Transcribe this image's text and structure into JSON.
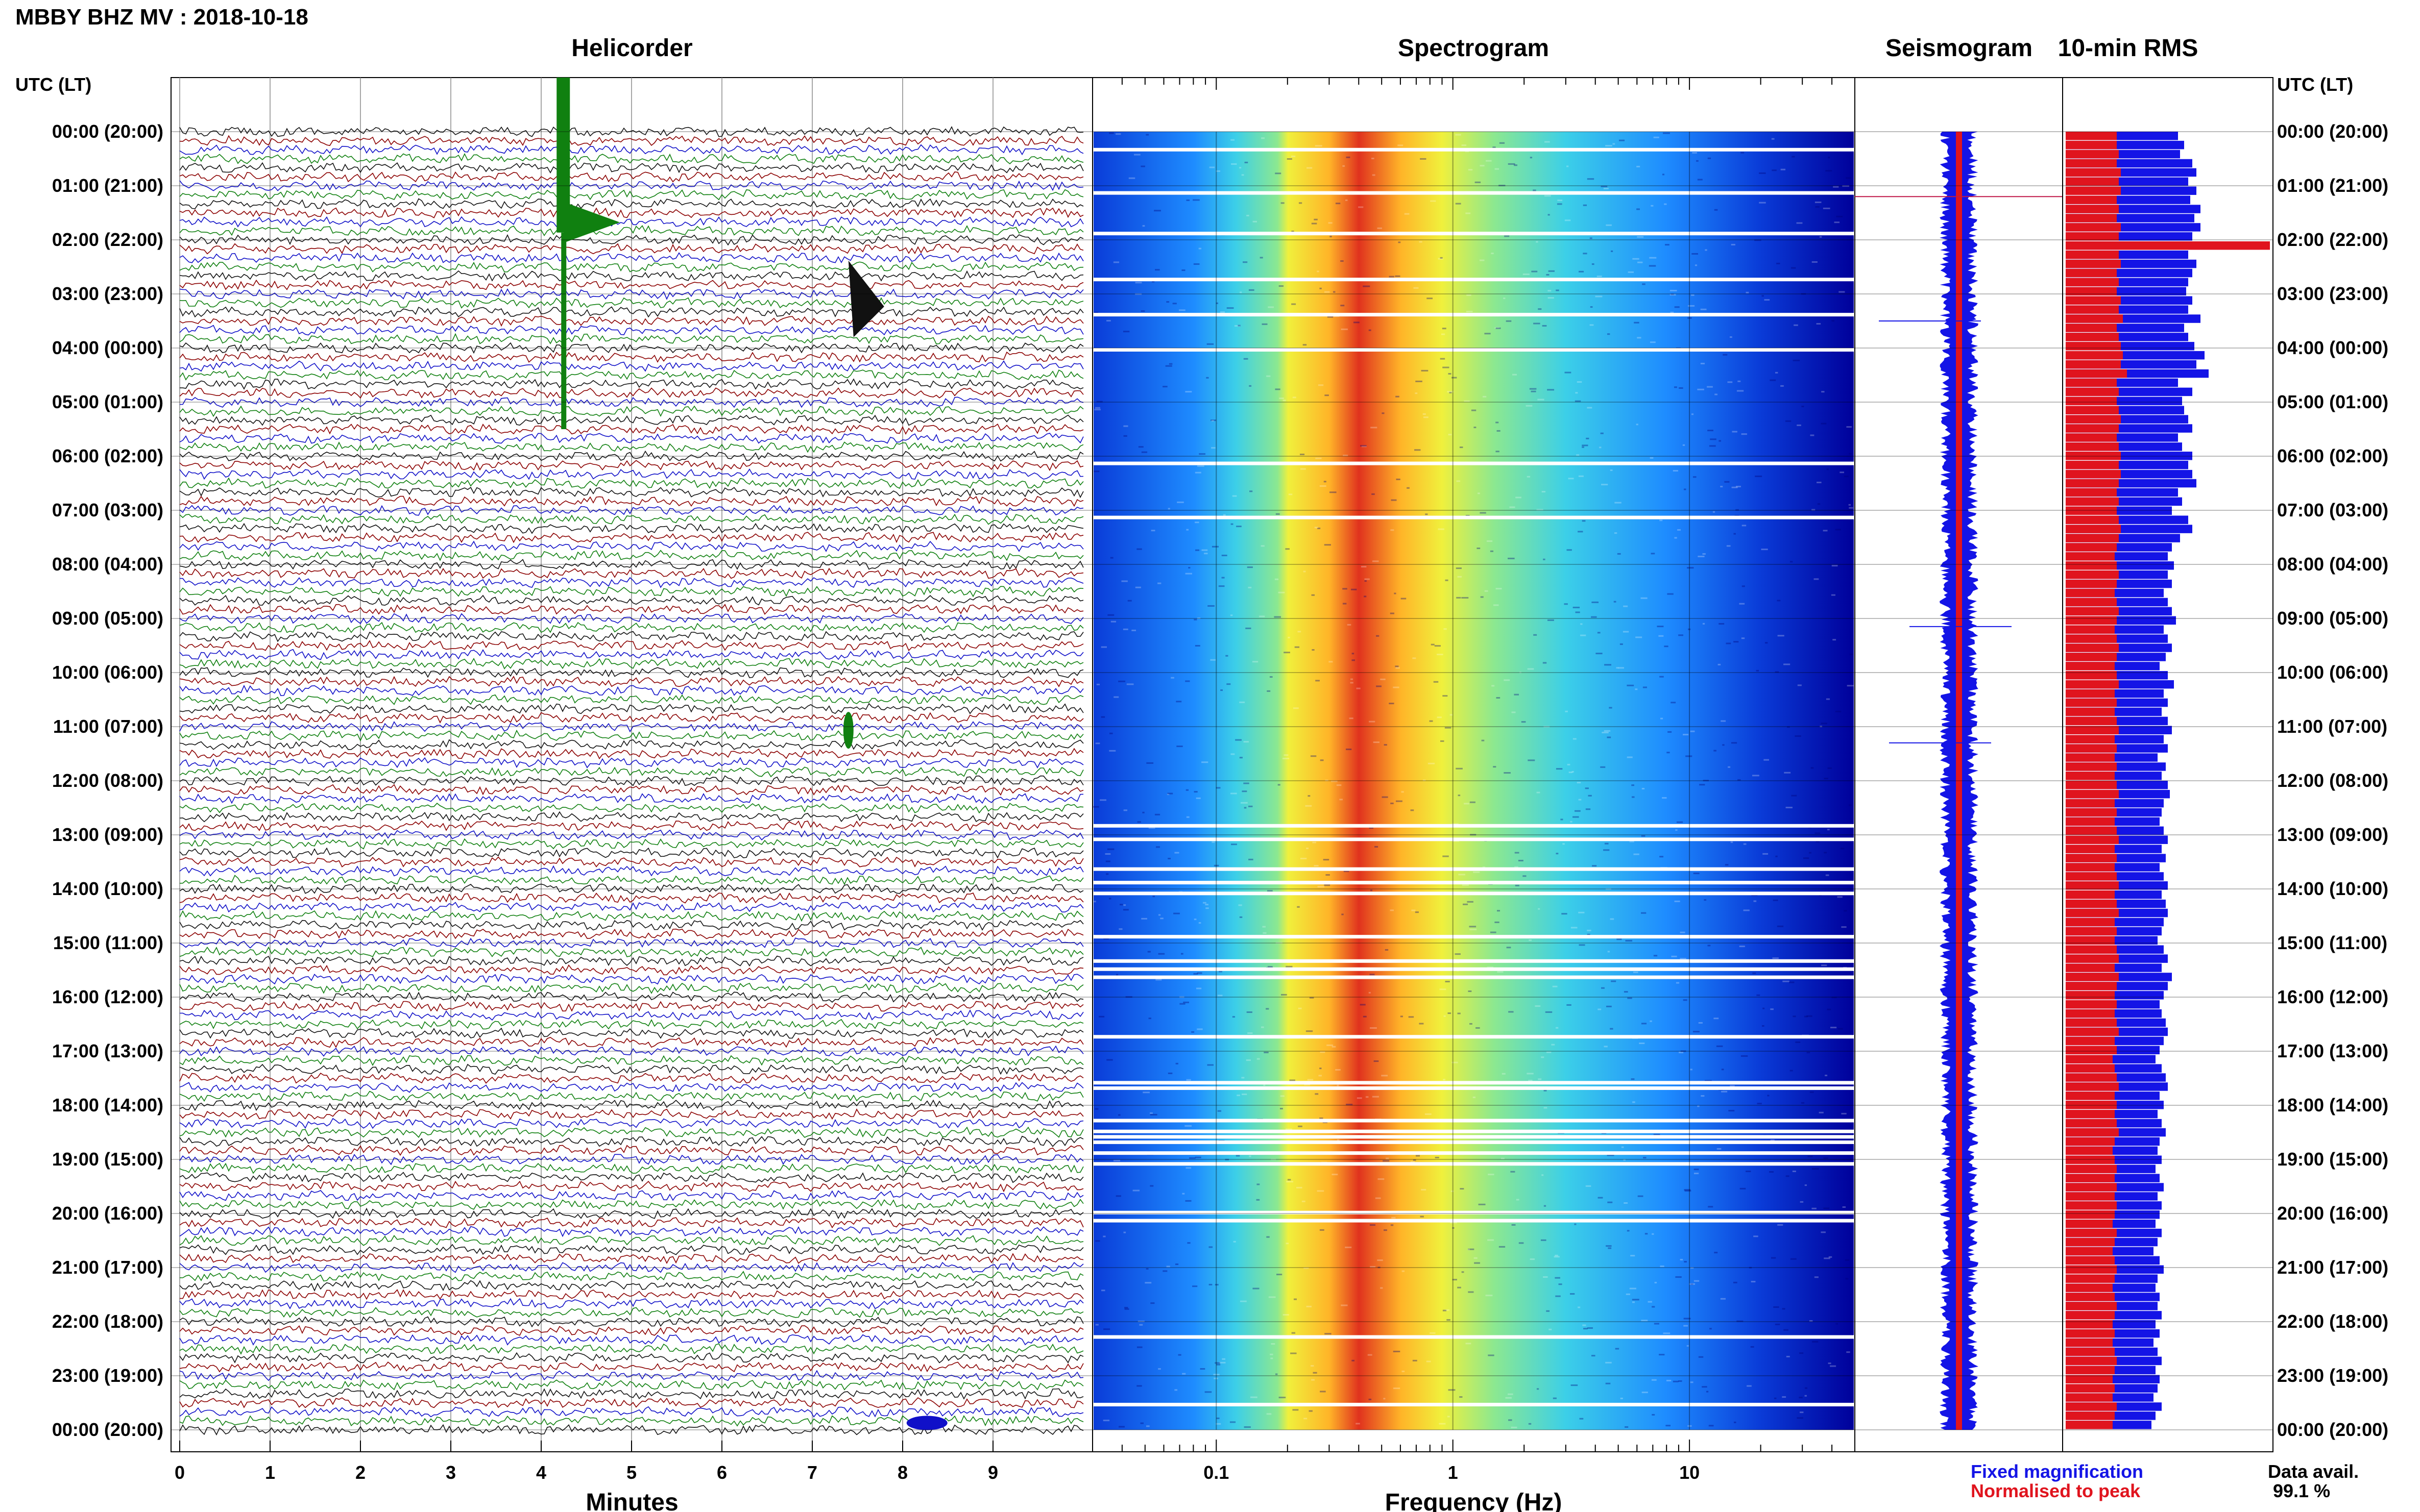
{
  "title": "MBBY BHZ MV : 2018-10-18",
  "panels": {
    "helicorder": "Helicorder",
    "spectrogram": "Spectrogram",
    "seismogram": "Seismogram",
    "rms": "10-min RMS"
  },
  "time_axis_label": "UTC (LT)",
  "hour_labels": [
    "00:00 (20:00)",
    "01:00 (21:00)",
    "02:00 (22:00)",
    "03:00 (23:00)",
    "04:00 (00:00)",
    "05:00 (01:00)",
    "06:00 (02:00)",
    "07:00 (03:00)",
    "08:00 (04:00)",
    "09:00 (05:00)",
    "10:00 (06:00)",
    "11:00 (07:00)",
    "12:00 (08:00)",
    "13:00 (09:00)",
    "14:00 (10:00)",
    "15:00 (11:00)",
    "16:00 (12:00)",
    "17:00 (13:00)",
    "18:00 (14:00)",
    "19:00 (15:00)",
    "20:00 (16:00)",
    "21:00 (17:00)",
    "22:00 (18:00)",
    "23:00 (19:00)",
    "00:00 (20:00)"
  ],
  "minutes_axis": {
    "label": "Minutes",
    "ticks": [
      "0",
      "1",
      "2",
      "3",
      "4",
      "5",
      "6",
      "7",
      "8",
      "9"
    ]
  },
  "frequency_axis": {
    "label": "Frequency (Hz)",
    "ticks": [
      "0.1",
      "1",
      "10"
    ]
  },
  "legend": {
    "fixed": "Fixed magnification",
    "normalised": "Normalised to peak"
  },
  "data_availability": {
    "label": "Data avail.",
    "value": "99.1 %"
  },
  "colors": {
    "trace_black": "#111111",
    "trace_red": "#8b0000",
    "trace_blue": "#1010c8",
    "trace_green": "#108010",
    "fixed": "#1414e6",
    "normalised": "#e0141e"
  },
  "chart_data": [
    {
      "type": "line",
      "title": "Helicorder",
      "xlabel": "Minutes",
      "xlim": [
        0,
        10
      ],
      "rows": 144,
      "row_interval_minutes": 10,
      "events": [
        {
          "time_utc": "00:44",
          "minute": 4.25,
          "description": "large event (green trace)"
        },
        {
          "time_utc": "03:14",
          "minute": 7.4,
          "description": "event"
        },
        {
          "time_utc": "11:04",
          "minute": 7.4,
          "description": "small event"
        },
        {
          "time_utc": "23:58",
          "minute": 8.1,
          "description": "small event"
        }
      ]
    },
    {
      "type": "heatmap",
      "title": "Spectrogram",
      "xlabel": "Frequency (Hz)",
      "xscale": "log",
      "xlim": [
        0.03,
        50
      ],
      "peak_band_hz": [
        0.2,
        0.6
      ],
      "colormap": [
        "#00009a",
        "#0a3cd8",
        "#1e8cff",
        "#3ccfe8",
        "#8ce890",
        "#f0f03c",
        "#ffb428",
        "#e0321e"
      ]
    },
    {
      "type": "line",
      "title": "Seismogram"
    },
    {
      "type": "bar",
      "title": "10-min RMS",
      "series": [
        {
          "name": "Fixed magnification",
          "values": [
            0.55,
            0.58,
            0.56,
            0.62,
            0.64,
            0.6,
            0.64,
            0.61,
            0.66,
            0.63,
            0.66,
            0.62,
            0.95,
            0.6,
            0.64,
            0.62,
            0.6,
            0.59,
            0.62,
            0.6,
            0.66,
            0.58,
            0.6,
            0.63,
            0.68,
            0.64,
            0.7,
            0.55,
            0.62,
            0.57,
            0.58,
            0.6,
            0.62,
            0.55,
            0.57,
            0.62,
            0.6,
            0.62,
            0.64,
            0.55,
            0.57,
            0.52,
            0.6,
            0.62,
            0.56,
            0.52,
            0.5,
            0.53,
            0.5,
            0.52,
            0.48,
            0.5,
            0.52,
            0.54,
            0.48,
            0.5,
            0.52,
            0.49,
            0.46,
            0.5,
            0.53,
            0.48,
            0.5,
            0.47,
            0.5,
            0.52,
            0.48,
            0.5,
            0.45,
            0.49,
            0.47,
            0.5,
            0.51,
            0.48,
            0.47,
            0.46,
            0.48,
            0.5,
            0.47,
            0.49,
            0.46,
            0.48,
            0.5,
            0.47,
            0.49,
            0.5,
            0.48,
            0.47,
            0.45,
            0.48,
            0.5,
            0.47,
            0.52,
            0.5,
            0.48,
            0.46,
            0.47,
            0.49,
            0.5,
            0.48,
            0.46,
            0.44,
            0.47,
            0.49,
            0.5,
            0.46,
            0.48,
            0.45,
            0.47,
            0.49,
            0.46,
            0.45,
            0.47,
            0.44,
            0.46,
            0.48,
            0.45,
            0.47,
            0.46,
            0.44,
            0.47,
            0.45,
            0.43,
            0.46,
            0.48,
            0.45,
            0.44,
            0.46,
            0.45,
            0.47,
            0.44,
            0.46,
            0.43,
            0.45,
            0.47,
            0.44,
            0.46,
            0.45,
            0.43,
            0.47,
            0.44,
            0.42
          ]
        },
        {
          "name": "Normalised to peak",
          "values": [
            0.25,
            0.25,
            0.26,
            0.25,
            0.27,
            0.26,
            0.27,
            0.25,
            0.26,
            0.25,
            0.27,
            0.26,
            1.0,
            0.26,
            0.27,
            0.25,
            0.26,
            0.25,
            0.27,
            0.26,
            0.28,
            0.25,
            0.26,
            0.27,
            0.28,
            0.27,
            0.3,
            0.25,
            0.26,
            0.25,
            0.26,
            0.27,
            0.26,
            0.25,
            0.26,
            0.27,
            0.26,
            0.27,
            0.26,
            0.25,
            0.26,
            0.25,
            0.26,
            0.27,
            0.26,
            0.25,
            0.24,
            0.25,
            0.26,
            0.25,
            0.24,
            0.25,
            0.26,
            0.25,
            0.24,
            0.25,
            0.26,
            0.25,
            0.24,
            0.25,
            0.26,
            0.24,
            0.25,
            0.24,
            0.25,
            0.26,
            0.24,
            0.25,
            0.24,
            0.25,
            0.24,
            0.25,
            0.26,
            0.24,
            0.25,
            0.24,
            0.25,
            0.26,
            0.24,
            0.25,
            0.24,
            0.25,
            0.26,
            0.24,
            0.25,
            0.26,
            0.24,
            0.25,
            0.24,
            0.25,
            0.26,
            0.24,
            0.26,
            0.25,
            0.24,
            0.25,
            0.24,
            0.25,
            0.26,
            0.24,
            0.25,
            0.23,
            0.24,
            0.25,
            0.26,
            0.24,
            0.25,
            0.24,
            0.25,
            0.26,
            0.24,
            0.23,
            0.24,
            0.25,
            0.24,
            0.25,
            0.24,
            0.25,
            0.24,
            0.23,
            0.25,
            0.24,
            0.23,
            0.24,
            0.25,
            0.24,
            0.23,
            0.24,
            0.25,
            0.24,
            0.23,
            0.24,
            0.23,
            0.24,
            0.25,
            0.24,
            0.23,
            0.24,
            0.23,
            0.25,
            0.24,
            0.23
          ]
        }
      ]
    }
  ]
}
